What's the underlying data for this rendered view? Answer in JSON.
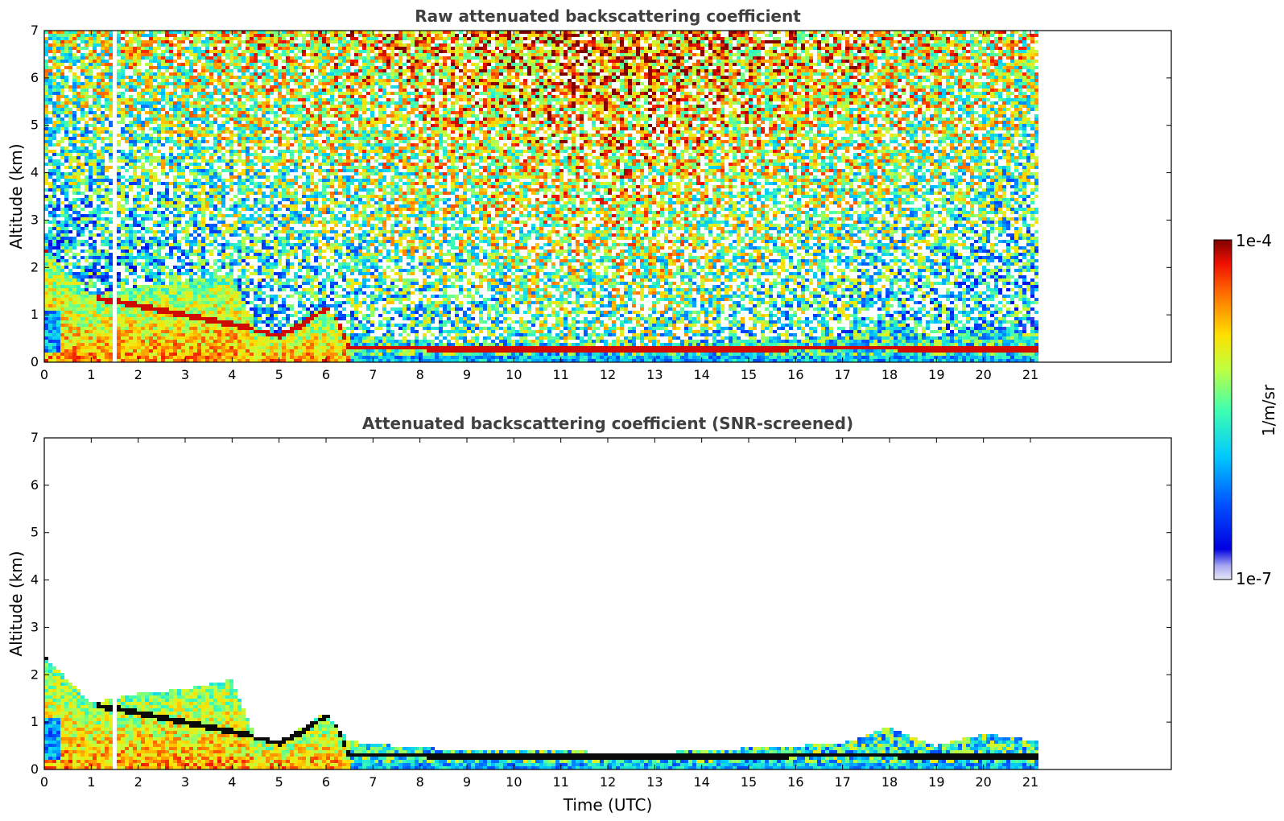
{
  "chart_data": [
    {
      "type": "heatmap",
      "title": "Raw attenuated backscattering coefficient",
      "xlabel": "",
      "ylabel": "Altitude (km)",
      "xlim": [
        0,
        24
      ],
      "ylim": [
        0,
        7
      ],
      "x_ticks": [
        "0",
        "1",
        "2",
        "3",
        "4",
        "5",
        "6",
        "7",
        "8",
        "9",
        "10",
        "11",
        "12",
        "13",
        "14",
        "15",
        "16",
        "17",
        "18",
        "19",
        "20",
        "21"
      ],
      "y_ticks": [
        "0",
        "1",
        "2",
        "3",
        "4",
        "5",
        "6",
        "7"
      ],
      "data_end_time": 21.2,
      "gap": [
        1.42,
        1.56
      ],
      "layers": [
        {
          "name": "boundary layer",
          "t": [
            0,
            1,
            2,
            3,
            4,
            4.5,
            5,
            6,
            6.5,
            8,
            10,
            13,
            15,
            17,
            18,
            19,
            20,
            21.2
          ],
          "top_km": [
            2.4,
            1.4,
            1.6,
            1.7,
            1.9,
            0.7,
            0.6,
            1.2,
            0.6,
            0.45,
            0.4,
            0.35,
            0.45,
            0.55,
            0.9,
            0.5,
            0.75,
            0.6
          ]
        },
        {
          "name": "aerosol layer top",
          "t": [
            0,
            0.9,
            1.1,
            1.7,
            4.5,
            5,
            5.5,
            6.1,
            6.5,
            8,
            12,
            16,
            18,
            21.2
          ],
          "alt_km": [
            2.35,
            2.3,
            1.35,
            1.25,
            0.7,
            0.55,
            0.8,
            1.2,
            0.3,
            0.3,
            0.25,
            0.3,
            0.3,
            0.25
          ]
        }
      ],
      "noise_profile": "noise signal increasing with altitude and toward midday (10-14 UTC)"
    },
    {
      "type": "heatmap",
      "title": "Attenuated backscattering coefficient (SNR-screened)",
      "xlabel": "Time (UTC)",
      "ylabel": "Altitude (km)",
      "xlim": [
        0,
        24
      ],
      "ylim": [
        0,
        7
      ],
      "x_ticks": [
        "0",
        "1",
        "2",
        "3",
        "4",
        "5",
        "6",
        "7",
        "8",
        "9",
        "10",
        "11",
        "12",
        "13",
        "14",
        "15",
        "16",
        "17",
        "18",
        "19",
        "20",
        "21"
      ],
      "y_ticks": [
        "0",
        "1",
        "2",
        "3",
        "4",
        "5",
        "6",
        "7"
      ],
      "data_end_time": 21.2,
      "gap": [
        1.42,
        1.56
      ]
    }
  ],
  "colorbar": {
    "label": "1/m/sr",
    "max_label": "1e-4",
    "min_label": "1e-7",
    "scale": "log",
    "colormap": "jet",
    "colors": [
      "#e8e8f8",
      "#0000c0",
      "#0060ff",
      "#00c8ff",
      "#40ffb0",
      "#c0ff40",
      "#ffe000",
      "#ff8000",
      "#ff1000",
      "#800000"
    ]
  }
}
